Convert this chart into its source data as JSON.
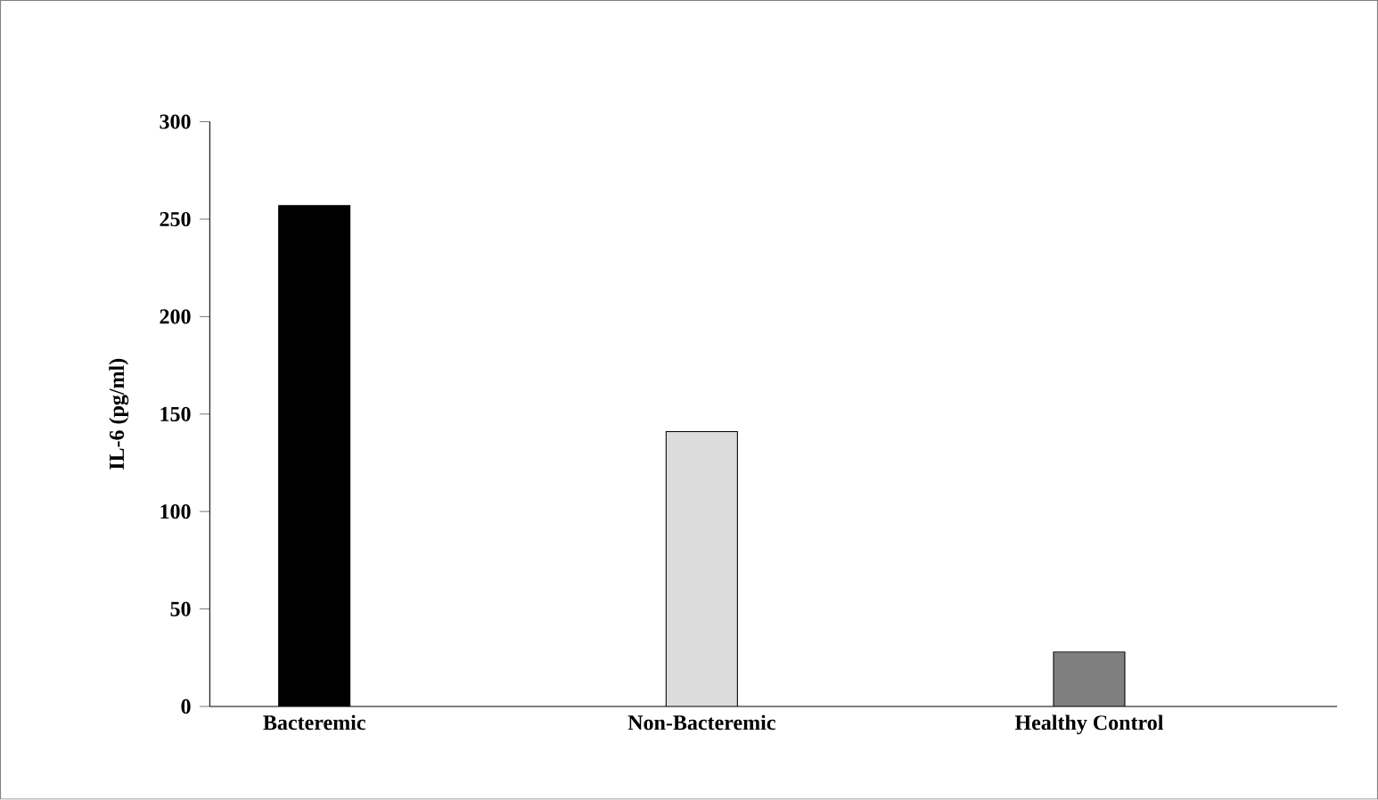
{
  "chart_data": {
    "type": "bar",
    "ylabel": "IL-6 (pg/ml)",
    "categories": [
      "Bacteremic",
      "Non-Bacteremic",
      "Healthy Control"
    ],
    "values": [
      257,
      141,
      28
    ],
    "colors": [
      "#000000",
      "#dcdcdc",
      "#7f7f7f"
    ],
    "ylim": [
      0,
      300
    ],
    "yticks": [
      0,
      50,
      100,
      150,
      200,
      250,
      300
    ],
    "grid": false
  }
}
